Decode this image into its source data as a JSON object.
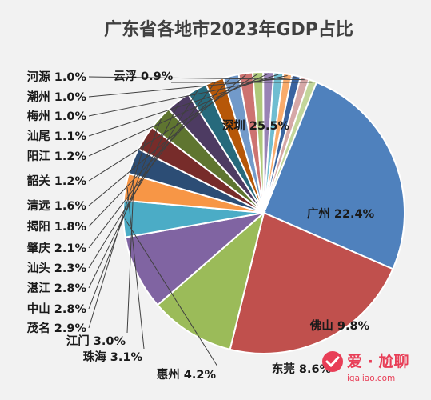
{
  "chart_data": {
    "type": "pie",
    "title": "广东省各地市2023年GDP占比",
    "slices": [
      {
        "name": "深圳",
        "value": 25.5,
        "label": "深圳 25.5%",
        "color": "#4f81bd"
      },
      {
        "name": "广州",
        "value": 22.4,
        "label": "广州 22.4%",
        "color": "#c0504d"
      },
      {
        "name": "佛山",
        "value": 9.8,
        "label": "佛山 9.8%",
        "color": "#9bbb59"
      },
      {
        "name": "东莞",
        "value": 8.6,
        "label": "东莞 8.6%",
        "color": "#8064a2"
      },
      {
        "name": "惠州",
        "value": 4.2,
        "label": "惠州 4.2%",
        "color": "#4bacc6"
      },
      {
        "name": "珠海",
        "value": 3.1,
        "label": "珠海 3.1%",
        "color": "#f79646"
      },
      {
        "name": "江门",
        "value": 3.0,
        "label": "江门 3.0%",
        "color": "#2c4d75"
      },
      {
        "name": "茂名",
        "value": 2.9,
        "label": "茂名 2.9%",
        "color": "#772c2a"
      },
      {
        "name": "中山",
        "value": 2.8,
        "label": "中山 2.8%",
        "color": "#5f7530"
      },
      {
        "name": "湛江",
        "value": 2.8,
        "label": "湛江 2.8%",
        "color": "#4d3b62"
      },
      {
        "name": "汕头",
        "value": 2.3,
        "label": "汕头 2.3%",
        "color": "#276a7c"
      },
      {
        "name": "肇庆",
        "value": 2.1,
        "label": "肇庆 2.1%",
        "color": "#b65708"
      },
      {
        "name": "揭阳",
        "value": 1.8,
        "label": "揭阳 1.8%",
        "color": "#729aca"
      },
      {
        "name": "清远",
        "value": 1.6,
        "label": "清远 1.6%",
        "color": "#cd7371"
      },
      {
        "name": "韶关",
        "value": 1.2,
        "label": "韶关 1.2%",
        "color": "#afc97a"
      },
      {
        "name": "阳江",
        "value": 1.2,
        "label": "阳江 1.2%",
        "color": "#9983b5"
      },
      {
        "name": "汕尾",
        "value": 1.1,
        "label": "汕尾 1.1%",
        "color": "#6fbdd1"
      },
      {
        "name": "梅州",
        "value": 1.0,
        "label": "梅州 1.0%",
        "color": "#f9ab6b"
      },
      {
        "name": "潮州",
        "value": 1.0,
        "label": "潮州 1.0%",
        "color": "#3a64a0"
      },
      {
        "name": "河源",
        "value": 1.0,
        "label": "河源 1.0%",
        "color": "#d6a8a7"
      },
      {
        "name": "云浮",
        "value": 0.9,
        "label": "云浮 0.9%",
        "color": "#c3d69b"
      }
    ]
  },
  "watermark": {
    "brand": "爱 · 尬聊",
    "url": "igaliao.com",
    "color": "#e83e57"
  }
}
